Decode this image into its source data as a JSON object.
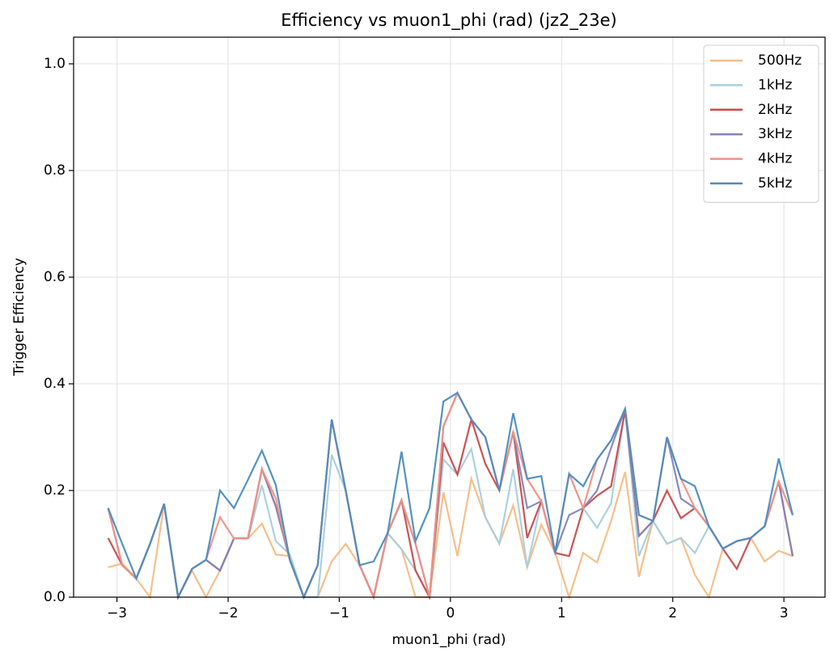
{
  "chart_data": {
    "type": "line",
    "title": "Efficiency vs muon1_phi (rad) (jz2_23e)",
    "x_label": "muon1_phi (rad)",
    "y_label": "Trigger Efficiency",
    "x": [
      -3.079,
      -2.953,
      -2.827,
      -2.702,
      -2.576,
      -2.45,
      -2.325,
      -2.199,
      -2.073,
      -1.948,
      -1.822,
      -1.696,
      -1.571,
      -1.445,
      -1.319,
      -1.194,
      -1.068,
      -0.942,
      -0.817,
      -0.691,
      -0.565,
      -0.44,
      -0.314,
      -0.188,
      -0.063,
      0.063,
      0.188,
      0.314,
      0.44,
      0.565,
      0.691,
      0.817,
      0.942,
      1.068,
      1.194,
      1.319,
      1.445,
      1.571,
      1.696,
      1.822,
      1.948,
      2.073,
      2.199,
      2.325,
      2.45,
      2.576,
      2.702,
      2.827,
      2.953,
      3.079
    ],
    "series": [
      {
        "name": "500Hz",
        "color": "#f5bc84",
        "values": [
          0.056,
          0.063,
          0.035,
          0,
          0.175,
          0,
          0.05,
          0,
          0.05,
          0.11,
          0.11,
          0.138,
          0.08,
          0.077,
          0,
          0,
          0.067,
          0.1,
          0.06,
          0,
          0.12,
          0.09,
          0,
          0,
          0.197,
          0.077,
          0.222,
          0.15,
          0.1,
          0.172,
          0.056,
          0.136,
          0.083,
          0,
          0.083,
          0.065,
          0.143,
          0.235,
          0.038,
          0.143,
          0.1,
          0.111,
          0.042,
          0,
          0.091,
          0.105,
          0.111,
          0.067,
          0.087,
          0.077
        ]
      },
      {
        "name": "1kHz",
        "color": "#a6cfdc",
        "values": [
          0.167,
          0.06,
          0.035,
          0.1,
          0.175,
          0,
          0.053,
          0.07,
          0.05,
          0.11,
          0.11,
          0.21,
          0.105,
          0.08,
          0,
          0,
          0.267,
          0.2,
          0.06,
          0,
          0.12,
          0.09,
          0.05,
          0,
          0.258,
          0.23,
          0.278,
          0.15,
          0.1,
          0.24,
          0.056,
          0.18,
          0.083,
          0.231,
          0.167,
          0.13,
          0.176,
          0.353,
          0.077,
          0.143,
          0.1,
          0.111,
          0.083,
          0.133,
          0.091,
          0.105,
          0.111,
          0.133,
          0.217,
          0.154
        ]
      },
      {
        "name": "2kHz",
        "color": "#c94a4a",
        "values": [
          0.111,
          0.06,
          0.035,
          0.1,
          0.175,
          0,
          0.053,
          0.07,
          0.05,
          0.11,
          0.11,
          0.24,
          0.17,
          0.07,
          0,
          0.06,
          0.333,
          0.2,
          0.06,
          0,
          0.12,
          0.182,
          0.05,
          0,
          0.29,
          0.23,
          0.333,
          0.25,
          0.2,
          0.31,
          0.111,
          0.18,
          0.083,
          0.077,
          0.167,
          0.19,
          0.208,
          0.35,
          0.115,
          0.143,
          0.2,
          0.148,
          0.167,
          0.133,
          0.091,
          0.053,
          0.111,
          0.133,
          0.217,
          0.077
        ]
      },
      {
        "name": "3kHz",
        "color": "#8484bb",
        "values": [
          0.167,
          0.06,
          0.035,
          0.1,
          0.175,
          0,
          0.053,
          0.07,
          0.05,
          0.11,
          0.11,
          0.24,
          0.17,
          0.07,
          0,
          0.06,
          0.333,
          0.2,
          0.06,
          0,
          0.12,
          0.18,
          0.1,
          0,
          0.32,
          0.383,
          0.333,
          0.3,
          0.2,
          0.31,
          0.167,
          0.18,
          0.083,
          0.154,
          0.167,
          0.2,
          0.28,
          0.353,
          0.115,
          0.143,
          0.3,
          0.185,
          0.167,
          0.133,
          0.091,
          0.105,
          0.111,
          0.133,
          0.217,
          0.077
        ]
      },
      {
        "name": "4kHz",
        "color": "#f39183",
        "values": [
          0.167,
          0.06,
          0.035,
          0.1,
          0.175,
          0,
          0.053,
          0.07,
          0.15,
          0.11,
          0.11,
          0.24,
          0.185,
          0.07,
          0,
          0.06,
          0.333,
          0.2,
          0.06,
          0,
          0.12,
          0.182,
          0.1,
          0,
          0.32,
          0.383,
          0.333,
          0.3,
          0.2,
          0.31,
          0.222,
          0.18,
          0.083,
          0.231,
          0.167,
          0.258,
          0.294,
          0.353,
          0.154,
          0.143,
          0.3,
          0.222,
          0.167,
          0.133,
          0.091,
          0.105,
          0.111,
          0.133,
          0.217,
          0.154
        ]
      },
      {
        "name": "5kHz",
        "color": "#4a8cc0",
        "values": [
          0.167,
          0.1,
          0.035,
          0.1,
          0.175,
          0,
          0.053,
          0.07,
          0.2,
          0.167,
          0.22,
          0.275,
          0.21,
          0.07,
          0,
          0.06,
          0.333,
          0.2,
          0.06,
          0.067,
          0.12,
          0.273,
          0.105,
          0.167,
          0.367,
          0.383,
          0.333,
          0.3,
          0.2,
          0.345,
          0.222,
          0.227,
          0.083,
          0.231,
          0.208,
          0.258,
          0.294,
          0.353,
          0.154,
          0.143,
          0.3,
          0.222,
          0.208,
          0.133,
          0.091,
          0.105,
          0.111,
          0.133,
          0.26,
          0.154
        ]
      }
    ],
    "xlim": [
      -3.39,
      3.37
    ],
    "ylim": [
      0,
      1.05
    ],
    "xticks": [
      {
        "value": -3,
        "label": "−3"
      },
      {
        "value": -2,
        "label": "−2"
      },
      {
        "value": -1,
        "label": "−1"
      },
      0,
      1,
      2,
      3
    ],
    "yticks": [
      {
        "value": 0,
        "label": "0.0"
      },
      {
        "value": 0.2,
        "label": "0.2"
      },
      {
        "value": 0.4,
        "label": "0.4"
      },
      {
        "value": 0.6,
        "label": "0.6"
      },
      {
        "value": 0.8,
        "label": "0.8"
      },
      {
        "value": 1,
        "label": "1.0"
      }
    ],
    "grid": true,
    "legend": "upper right"
  }
}
